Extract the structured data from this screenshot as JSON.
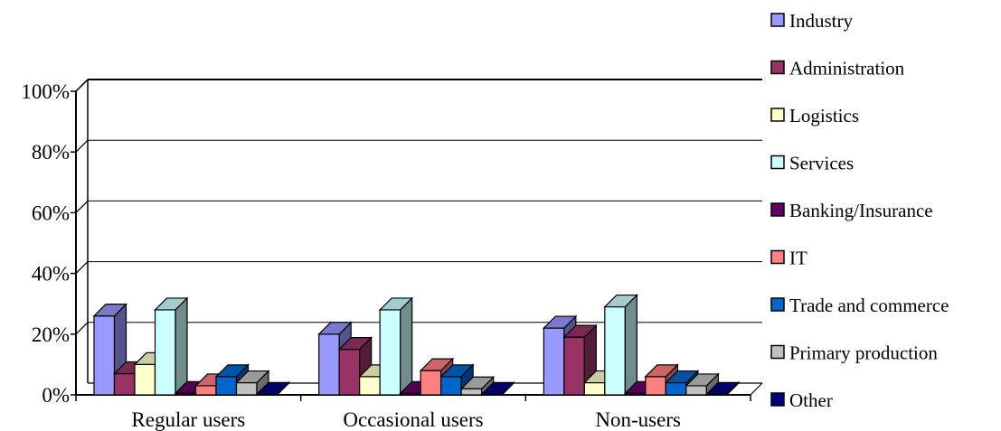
{
  "chart_data": {
    "type": "bar",
    "style": "3d-clustered-column",
    "categories": [
      "Regular users",
      "Occasional users",
      "Non-users"
    ],
    "yticks": [
      "0%",
      "20%",
      "40%",
      "60%",
      "80%",
      "100%"
    ],
    "ylim": [
      0,
      100
    ],
    "grid": true,
    "legend_position": "right",
    "series": [
      {
        "name": "Industry",
        "color": "#9999FF",
        "values": [
          26,
          20,
          22
        ]
      },
      {
        "name": "Administration",
        "color": "#993366",
        "values": [
          7,
          15,
          19
        ]
      },
      {
        "name": "Logistics",
        "color": "#FFFFCC",
        "values": [
          10,
          6,
          4
        ]
      },
      {
        "name": "Services",
        "color": "#CCFFFF",
        "values": [
          28,
          28,
          29
        ]
      },
      {
        "name": "Banking/Insurance",
        "color": "#660066",
        "values": [
          0.5,
          0.5,
          0.5
        ]
      },
      {
        "name": "IT",
        "color": "#FF8080",
        "values": [
          3,
          8,
          6
        ]
      },
      {
        "name": "Trade and commerce",
        "color": "#0066CC",
        "values": [
          6,
          6,
          4
        ]
      },
      {
        "name": "Primary production",
        "color": "#C0C0C0",
        "values": [
          4,
          2,
          3
        ]
      },
      {
        "name": "Other",
        "color": "#000080",
        "values": [
          0.2,
          0.2,
          0.2
        ]
      }
    ]
  }
}
